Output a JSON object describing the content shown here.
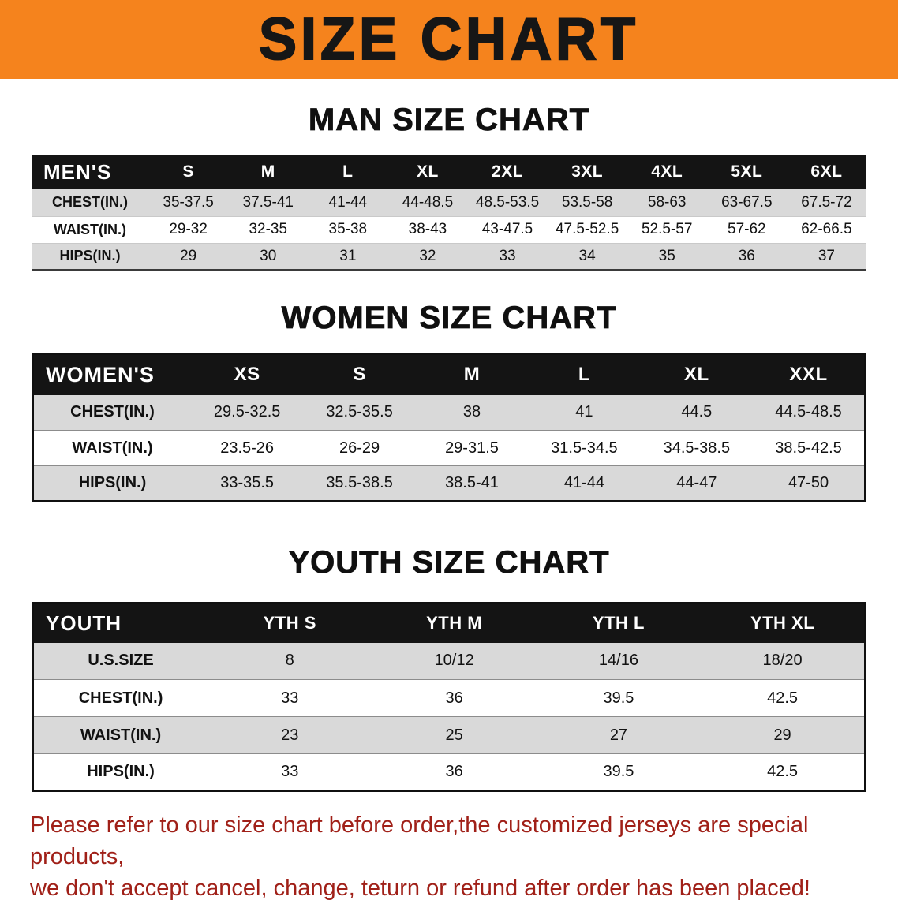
{
  "banner": {
    "title": "SIZE CHART"
  },
  "sections": [
    {
      "id": "men",
      "heading": "MAN SIZE CHART",
      "header_label": "MEN'S",
      "sizes": [
        "S",
        "M",
        "L",
        "XL",
        "2XL",
        "3XL",
        "4XL",
        "5XL",
        "6XL"
      ],
      "rows": [
        {
          "label": "CHEST(IN.)",
          "values": [
            "35-37.5",
            "37.5-41",
            "41-44",
            "44-48.5",
            "48.5-53.5",
            "53.5-58",
            "58-63",
            "63-67.5",
            "67.5-72"
          ]
        },
        {
          "label": "WAIST(IN.)",
          "values": [
            "29-32",
            "32-35",
            "35-38",
            "38-43",
            "43-47.5",
            "47.5-52.5",
            "52.5-57",
            "57-62",
            "62-66.5"
          ]
        },
        {
          "label": "HIPS(IN.)",
          "values": [
            "29",
            "30",
            "31",
            "32",
            "33",
            "34",
            "35",
            "36",
            "37"
          ]
        }
      ]
    },
    {
      "id": "women",
      "heading": "WOMEN SIZE CHART",
      "header_label": "WOMEN'S",
      "sizes": [
        "XS",
        "S",
        "M",
        "L",
        "XL",
        "XXL"
      ],
      "rows": [
        {
          "label": "CHEST(IN.)",
          "values": [
            "29.5-32.5",
            "32.5-35.5",
            "38",
            "41",
            "44.5",
            "44.5-48.5"
          ]
        },
        {
          "label": "WAIST(IN.)",
          "values": [
            "23.5-26",
            "26-29",
            "29-31.5",
            "31.5-34.5",
            "34.5-38.5",
            "38.5-42.5"
          ]
        },
        {
          "label": "HIPS(IN.)",
          "values": [
            "33-35.5",
            "35.5-38.5",
            "38.5-41",
            "41-44",
            "44-47",
            "47-50"
          ]
        }
      ]
    },
    {
      "id": "youth",
      "heading": "YOUTH SIZE CHART",
      "header_label": "YOUTH",
      "sizes": [
        "YTH S",
        "YTH M",
        "YTH L",
        "YTH XL"
      ],
      "rows": [
        {
          "label": "U.S.SIZE",
          "values": [
            "8",
            "10/12",
            "14/16",
            "18/20"
          ]
        },
        {
          "label": "CHEST(IN.)",
          "values": [
            "33",
            "36",
            "39.5",
            "42.5"
          ]
        },
        {
          "label": "WAIST(IN.)",
          "values": [
            "23",
            "25",
            "27",
            "29"
          ]
        },
        {
          "label": "HIPS(IN.)",
          "values": [
            "33",
            "36",
            "39.5",
            "42.5"
          ]
        }
      ]
    }
  ],
  "disclaimer": {
    "line1": "Please refer to our size chart before order,the customized jerseys are special products,",
    "line2": "we don't accept cancel, change, teturn or refund after order has been placed!"
  },
  "colors": {
    "banner_orange": "#F5831D",
    "header_black": "#141414",
    "row_gray": "#D9D9D9",
    "disclaimer_red": "#A02018"
  }
}
